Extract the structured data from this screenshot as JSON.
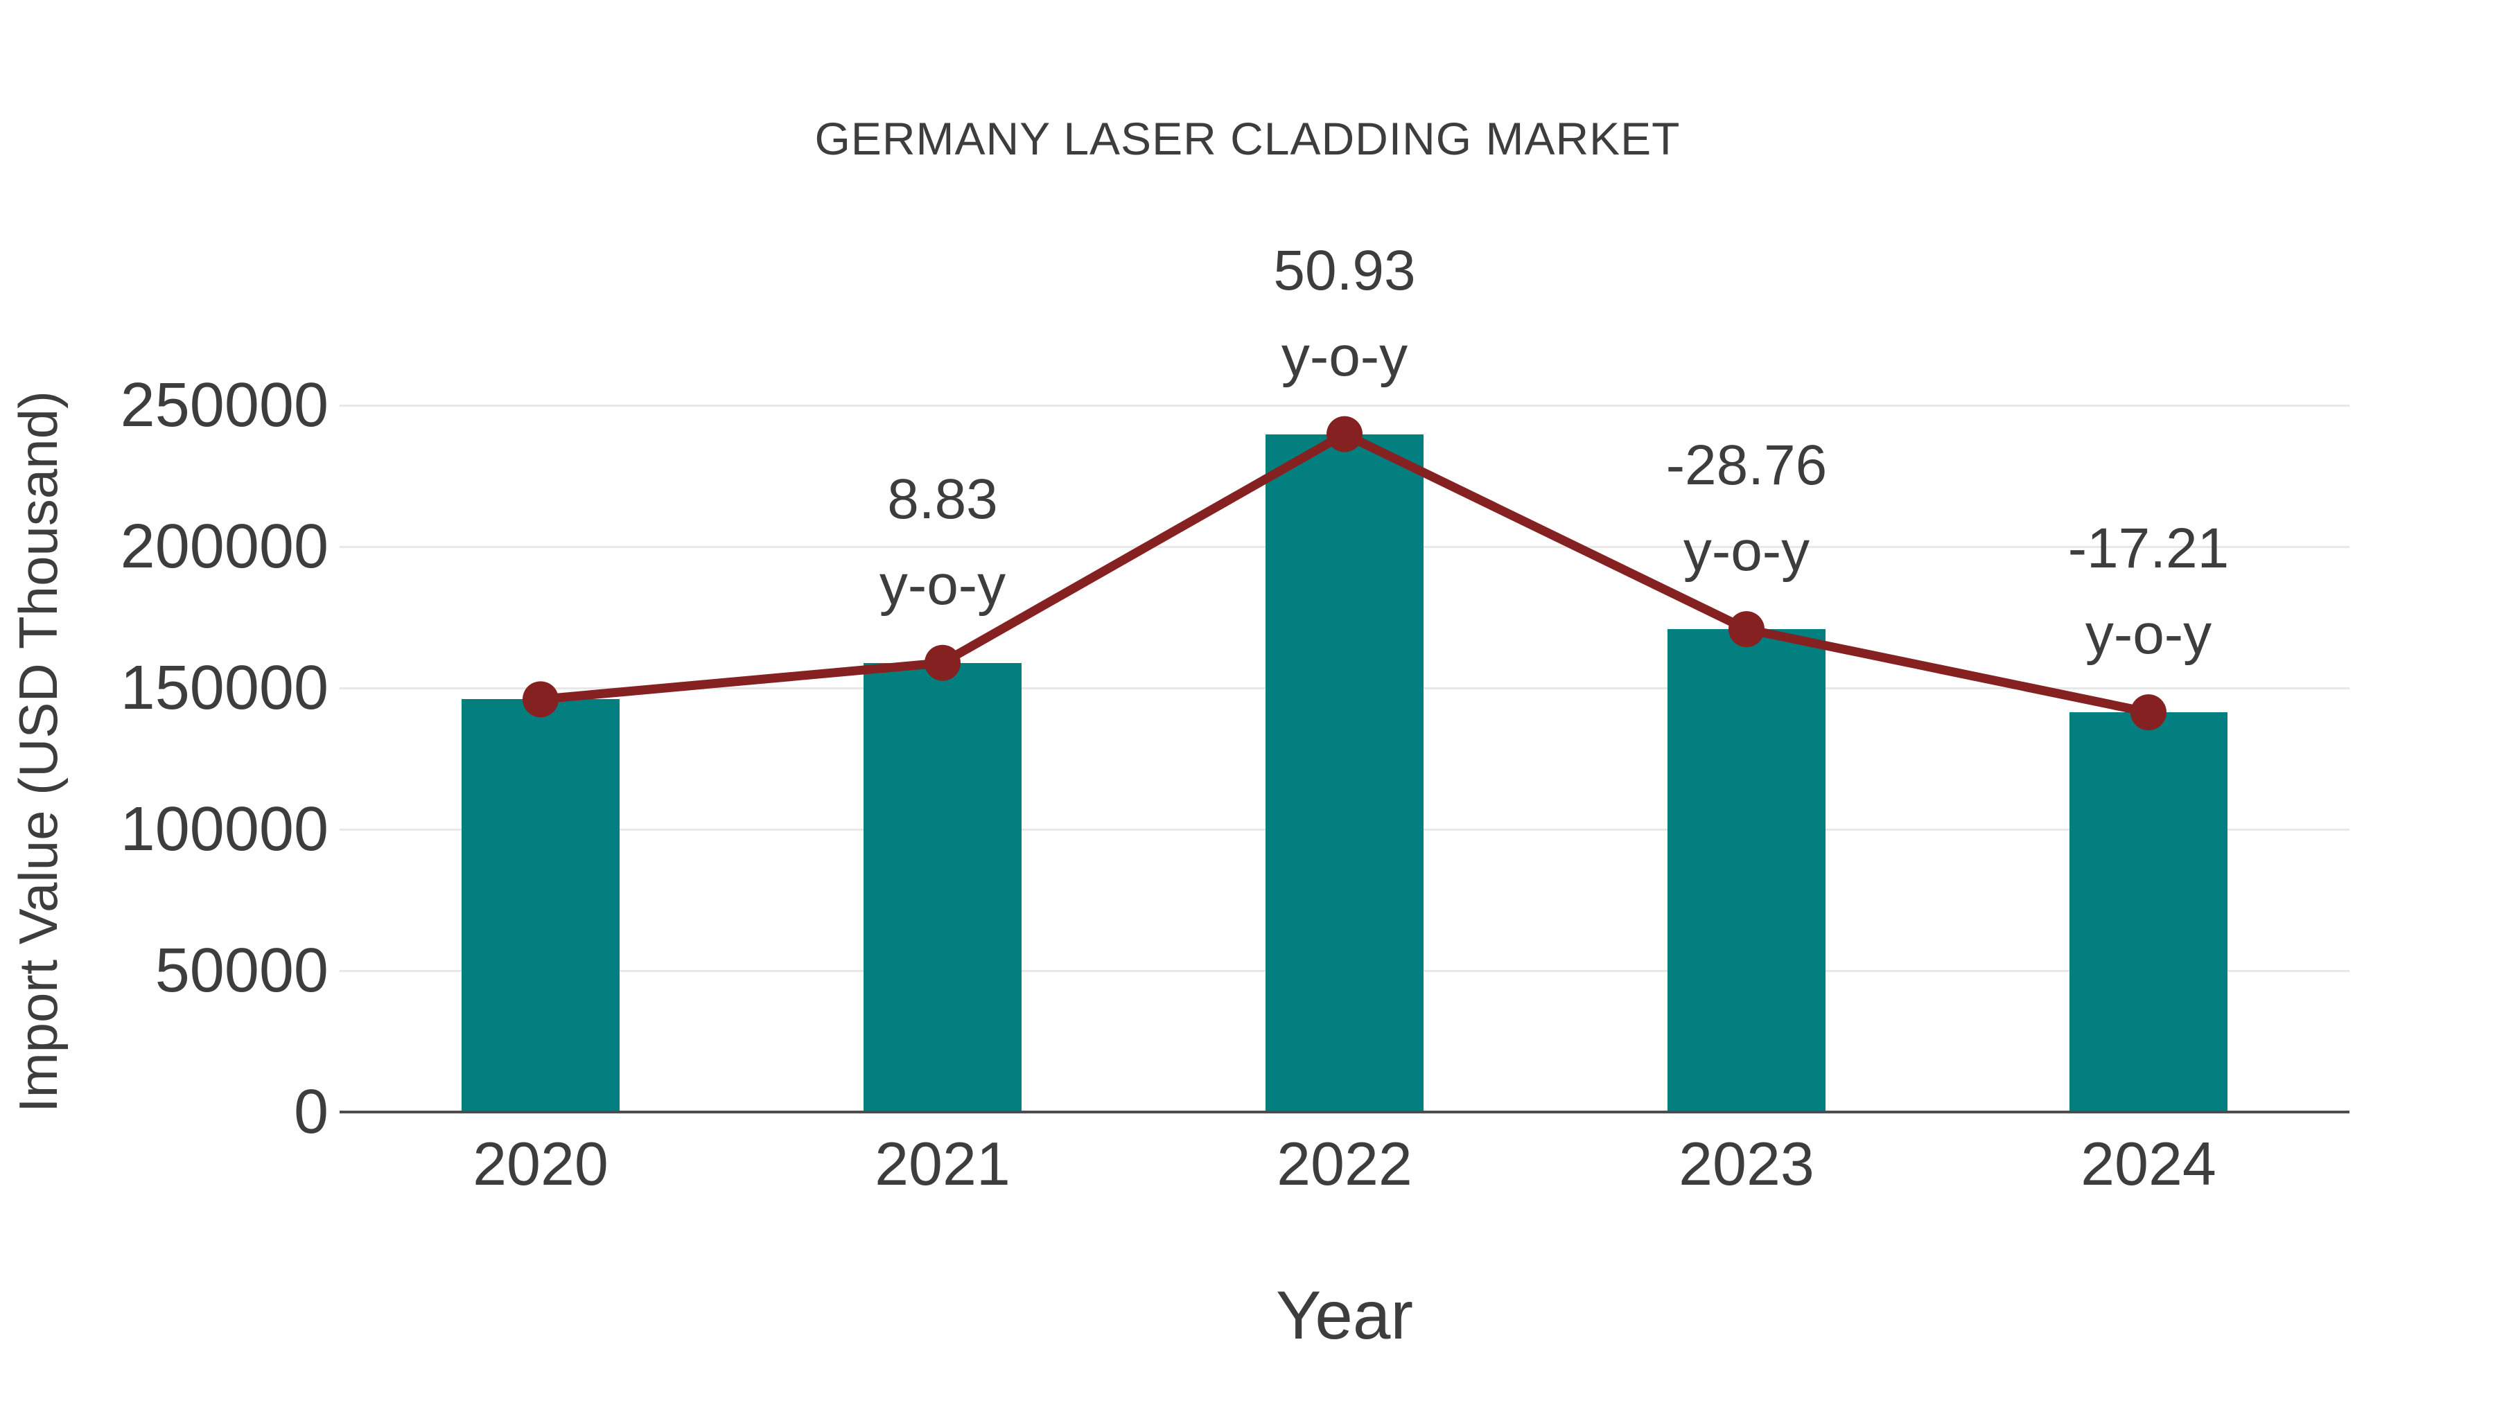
{
  "figure": {
    "background_color": "#ffffff",
    "text_color": "#3d3d3d",
    "gridline_color": "#e8e8e8",
    "axis_line_color": "#4d4d4d"
  },
  "chart_data": {
    "type": "bar",
    "title": "GERMANY LASER CLADDING MARKET",
    "xlabel": "Year",
    "ylabel": "Import Value (USD Thousand)",
    "categories": [
      "2020",
      "2021",
      "2022",
      "2023",
      "2024"
    ],
    "series": [
      {
        "name": "Import Value bars",
        "type": "bar",
        "color": "#047f80",
        "values": [
          146000,
          158900,
          239800,
          170800,
          141400
        ]
      },
      {
        "name": "Import Value trend line",
        "type": "line",
        "color": "#862121",
        "marker": "circle",
        "values": [
          146000,
          158900,
          239800,
          170800,
          141400
        ]
      }
    ],
    "annotations": [
      {
        "category": "2021",
        "lines": [
          "8.83",
          "y-o-y"
        ]
      },
      {
        "category": "2022",
        "lines": [
          "50.93",
          "y-o-y"
        ]
      },
      {
        "category": "2023",
        "lines": [
          "-28.76",
          "y-o-y"
        ]
      },
      {
        "category": "2024",
        "lines": [
          "-17.21",
          "y-o-y"
        ]
      }
    ],
    "ylim": [
      0,
      250000
    ],
    "yticks": [
      0,
      50000,
      100000,
      150000,
      200000,
      250000
    ],
    "grid": "horizontal",
    "legend_position": "none"
  }
}
